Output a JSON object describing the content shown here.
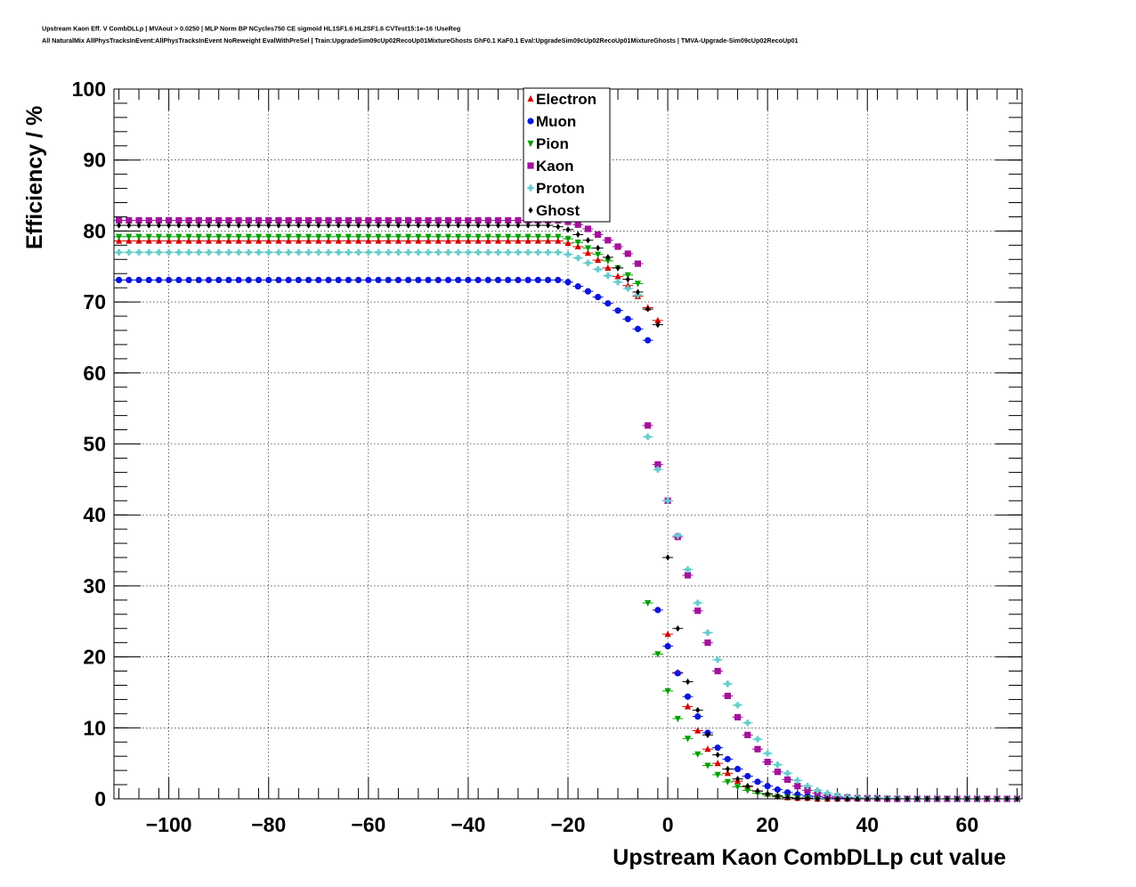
{
  "chart_data": {
    "type": "scatter",
    "title_lines": [
      "Upstream Kaon Eff. V CombDLLp | MVAout > 0.0250 | MLP Norm BP NCycles750 CE sigmoid HL1SF1.6 HL2SF1.6 CVTest15:1e-16 !UseReg",
      "All NaturalMix AllPhysTracksInEvent:AllPhysTracksInEvent NoReweight EvalWithPreSel | Train:UpgradeSim09cUp02RecoUp01MixtureGhosts GhF0.1 KaF0.1 Eval:UpgradeSim09cUp02RecoUp01MixtureGhosts | TMVA-Upgrade-Sim09cUp02RecoUp01"
    ],
    "xlabel": "Upstream Kaon CombDLLp cut value",
    "ylabel": "Efficiency / %",
    "xlim": [
      -111,
      71
    ],
    "ylim": [
      0,
      100
    ],
    "x_ticks": [
      -100,
      -80,
      -60,
      -40,
      -20,
      0,
      20,
      40,
      60
    ],
    "x_tick_labels": [
      "−100",
      "−80",
      "−60",
      "−40",
      "−20",
      "0",
      "20",
      "40",
      "60"
    ],
    "y_ticks": [
      0,
      10,
      20,
      30,
      40,
      50,
      60,
      70,
      80,
      90,
      100
    ],
    "y_tick_labels": [
      "0",
      "10",
      "20",
      "30",
      "40",
      "50",
      "60",
      "70",
      "80",
      "90",
      "100"
    ],
    "grid": true,
    "legend_position": "top-center",
    "x": [
      -110,
      -108,
      -106,
      -104,
      -102,
      -100,
      -98,
      -96,
      -94,
      -92,
      -90,
      -88,
      -86,
      -84,
      -82,
      -80,
      -78,
      -76,
      -74,
      -72,
      -70,
      -68,
      -66,
      -64,
      -62,
      -60,
      -58,
      -56,
      -54,
      -52,
      -50,
      -48,
      -46,
      -44,
      -42,
      -40,
      -38,
      -36,
      -34,
      -32,
      -30,
      -28,
      -26,
      -24,
      -22,
      -20,
      -18,
      -16,
      -14,
      -12,
      -10,
      -8,
      -6,
      -4,
      -2,
      0,
      2,
      4,
      6,
      8,
      10,
      12,
      14,
      16,
      18,
      20,
      22,
      24,
      26,
      28,
      30,
      32,
      34,
      36,
      38,
      40,
      42,
      44,
      46,
      48,
      50,
      52,
      54,
      56,
      58,
      60,
      62,
      64,
      66,
      68,
      70
    ],
    "series": [
      {
        "name": "Electron",
        "color": "#d40000",
        "marker": "triangle-up",
        "values": [
          78.6,
          78.6,
          78.6,
          78.6,
          78.6,
          78.6,
          78.6,
          78.6,
          78.6,
          78.6,
          78.6,
          78.6,
          78.6,
          78.6,
          78.6,
          78.6,
          78.6,
          78.6,
          78.6,
          78.6,
          78.6,
          78.6,
          78.6,
          78.6,
          78.6,
          78.6,
          78.6,
          78.6,
          78.6,
          78.6,
          78.6,
          78.6,
          78.6,
          78.6,
          78.6,
          78.6,
          78.6,
          78.6,
          78.6,
          78.6,
          78.6,
          78.6,
          78.6,
          78.6,
          78.6,
          78.3,
          77.8,
          76.9,
          75.9,
          74.8,
          73.6,
          72.3,
          70.8,
          69.2,
          67.4,
          23.2,
          17.8,
          13.0,
          9.6,
          7.0,
          5.0,
          3.6,
          2.5,
          1.7,
          1.1,
          0.7,
          0.4,
          0.2,
          0.1,
          0.1,
          0.0,
          0.0,
          0.0,
          0.0,
          0.0,
          0.0,
          0.0,
          0.0,
          0.0,
          0.0,
          0.0,
          0.0,
          0.0,
          0.0,
          0.0,
          0.0,
          0.0,
          0.0,
          0.0,
          0.0,
          0.0
        ]
      },
      {
        "name": "Muon",
        "color": "#0a16d9",
        "marker": "circle",
        "values": [
          73.1,
          73.1,
          73.1,
          73.1,
          73.1,
          73.1,
          73.1,
          73.1,
          73.1,
          73.1,
          73.1,
          73.1,
          73.1,
          73.1,
          73.1,
          73.1,
          73.1,
          73.1,
          73.1,
          73.1,
          73.1,
          73.1,
          73.1,
          73.1,
          73.1,
          73.1,
          73.1,
          73.1,
          73.1,
          73.1,
          73.1,
          73.1,
          73.1,
          73.1,
          73.1,
          73.1,
          73.1,
          73.1,
          73.1,
          73.1,
          73.1,
          73.1,
          73.1,
          73.1,
          73.1,
          72.8,
          72.2,
          71.5,
          70.7,
          69.8,
          68.8,
          67.6,
          66.2,
          64.6,
          26.6,
          21.5,
          17.7,
          14.4,
          11.6,
          9.3,
          7.2,
          5.6,
          4.2,
          3.2,
          2.4,
          1.8,
          1.3,
          0.9,
          0.6,
          0.4,
          0.3,
          0.2,
          0.1,
          0.1,
          0.1,
          0.1,
          0.1,
          0.0,
          0.0,
          0.0,
          0.0,
          0.0,
          0.0,
          0.0,
          0.0,
          0.0,
          0.0,
          0.0,
          0.0,
          0.0,
          0.0
        ]
      },
      {
        "name": "Pion",
        "color": "#00a000",
        "marker": "triangle-down",
        "values": [
          79.2,
          79.2,
          79.2,
          79.2,
          79.2,
          79.2,
          79.2,
          79.2,
          79.2,
          79.2,
          79.2,
          79.2,
          79.2,
          79.2,
          79.2,
          79.2,
          79.2,
          79.2,
          79.2,
          79.2,
          79.2,
          79.2,
          79.2,
          79.2,
          79.2,
          79.2,
          79.2,
          79.2,
          79.2,
          79.2,
          79.2,
          79.2,
          79.2,
          79.2,
          79.2,
          79.2,
          79.2,
          79.2,
          79.2,
          79.2,
          79.2,
          79.2,
          79.2,
          79.2,
          79.2,
          78.9,
          78.4,
          77.6,
          76.7,
          75.8,
          74.8,
          73.8,
          72.6,
          27.6,
          20.4,
          15.2,
          11.3,
          8.5,
          6.3,
          4.7,
          3.4,
          2.4,
          1.7,
          1.2,
          0.8,
          0.5,
          0.3,
          0.2,
          0.1,
          0.1,
          0.0,
          0.0,
          0.0,
          0.0,
          0.0,
          0.0,
          0.0,
          0.0,
          0.0,
          0.0,
          0.0,
          0.0,
          0.0,
          0.0,
          0.0,
          0.0,
          0.0,
          0.0,
          0.0,
          0.0,
          0.0
        ]
      },
      {
        "name": "Kaon",
        "color": "#a2129b",
        "marker": "square",
        "values": [
          81.5,
          81.5,
          81.5,
          81.5,
          81.5,
          81.5,
          81.5,
          81.5,
          81.5,
          81.5,
          81.5,
          81.5,
          81.5,
          81.5,
          81.5,
          81.5,
          81.5,
          81.5,
          81.5,
          81.5,
          81.5,
          81.5,
          81.5,
          81.5,
          81.5,
          81.5,
          81.5,
          81.5,
          81.5,
          81.5,
          81.5,
          81.5,
          81.5,
          81.5,
          81.5,
          81.5,
          81.5,
          81.5,
          81.5,
          81.5,
          81.5,
          81.5,
          81.5,
          81.5,
          81.5,
          81.3,
          80.9,
          80.3,
          79.5,
          78.7,
          77.8,
          76.8,
          75.4,
          52.6,
          47.1,
          42.0,
          36.9,
          31.5,
          26.5,
          22.0,
          18.0,
          14.5,
          11.5,
          9.0,
          7.0,
          5.2,
          3.8,
          2.7,
          1.8,
          1.2,
          0.8,
          0.5,
          0.3,
          0.2,
          0.1,
          0.1,
          0.1,
          0.0,
          0.0,
          0.0,
          0.0,
          0.0,
          0.0,
          0.0,
          0.0,
          0.0,
          0.0,
          0.0,
          0.0,
          0.0,
          0.0
        ]
      },
      {
        "name": "Proton",
        "color": "#66cccc",
        "marker": "cross",
        "values": [
          77.0,
          77.0,
          77.0,
          77.0,
          77.0,
          77.0,
          77.0,
          77.0,
          77.0,
          77.0,
          77.0,
          77.0,
          77.0,
          77.0,
          77.0,
          77.0,
          77.0,
          77.0,
          77.0,
          77.0,
          77.0,
          77.0,
          77.0,
          77.0,
          77.0,
          77.0,
          77.0,
          77.0,
          77.0,
          77.0,
          77.0,
          77.0,
          77.0,
          77.0,
          77.0,
          77.0,
          77.0,
          77.0,
          77.0,
          77.0,
          77.0,
          77.0,
          77.0,
          77.0,
          77.0,
          76.7,
          76.2,
          75.5,
          74.6,
          73.7,
          72.8,
          71.9,
          71.0,
          51.0,
          46.4,
          42.0,
          37.1,
          32.3,
          27.6,
          23.4,
          19.6,
          16.2,
          13.2,
          10.7,
          8.4,
          6.4,
          4.8,
          3.6,
          2.6,
          1.8,
          1.2,
          0.8,
          0.5,
          0.3,
          0.2,
          0.1,
          0.1,
          0.1,
          0.1,
          0.0,
          0.0,
          0.0,
          0.0,
          0.0,
          0.0,
          0.0,
          0.0,
          0.0,
          0.0,
          0.0,
          0.0
        ]
      },
      {
        "name": "Ghost",
        "color": "#000000",
        "marker": "diamond",
        "values": [
          80.8,
          80.8,
          80.8,
          80.8,
          80.8,
          80.8,
          80.8,
          80.8,
          80.8,
          80.8,
          80.8,
          80.8,
          80.8,
          80.8,
          80.8,
          80.8,
          80.8,
          80.8,
          80.8,
          80.8,
          80.8,
          80.8,
          80.8,
          80.8,
          80.8,
          80.8,
          80.8,
          80.8,
          80.8,
          80.8,
          80.8,
          80.8,
          80.8,
          80.8,
          80.8,
          80.8,
          80.8,
          80.8,
          80.8,
          80.8,
          80.8,
          80.8,
          80.8,
          80.8,
          80.6,
          80.2,
          79.5,
          78.7,
          77.6,
          76.3,
          74.8,
          73.2,
          71.4,
          69.0,
          66.8,
          34.0,
          24.0,
          16.5,
          12.5,
          9.0,
          6.2,
          4.2,
          2.8,
          1.8,
          1.1,
          0.7,
          0.4,
          0.2,
          0.1,
          0.1,
          0.0,
          0.0,
          0.0,
          0.0,
          0.0,
          0.0,
          0.0,
          0.0,
          0.0,
          0.0,
          0.0,
          0.0,
          0.0,
          0.0,
          0.0,
          0.0,
          0.0,
          0.0,
          0.0,
          0.0,
          0.0
        ]
      }
    ]
  }
}
